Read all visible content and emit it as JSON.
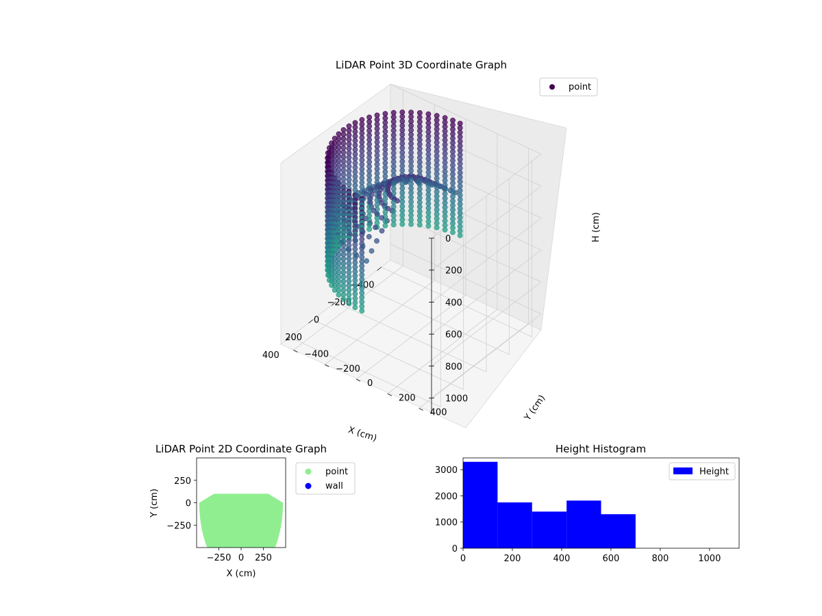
{
  "chart_data": [
    {
      "type": "scatter",
      "projection": "3d",
      "title": "LiDAR Point 3D Coordinate Graph",
      "xlabel": "X (cm)",
      "ylabel": "Y (cm)",
      "zlabel": "H (cm)",
      "xlim": [
        -480,
        480
      ],
      "ylim": [
        -480,
        480
      ],
      "zlim": [
        1100,
        0
      ],
      "x_ticks": [
        -400,
        -200,
        0,
        200,
        400
      ],
      "x_tick_labels": [
        "−400",
        "−200",
        "0",
        "200",
        "400"
      ],
      "y_ticks": [
        -400,
        -200,
        0,
        200,
        400
      ],
      "y_tick_labels": [
        "−400",
        "−200",
        "0",
        "200",
        "400"
      ],
      "z_ticks": [
        0,
        200,
        400,
        600,
        800,
        1000
      ],
      "z_tick_labels": [
        "0",
        "200",
        "400",
        "600",
        "800",
        "1000"
      ],
      "z_inverted": true,
      "grid": true,
      "colormap": "viridis",
      "legend": {
        "placement": "upper-right",
        "entries": [
          "point"
        ]
      },
      "series": [
        {
          "name": "point",
          "description_values": {
            "shape": "half-cylinder wall",
            "radius": 430,
            "angle_range_deg": [
              -180,
              0
            ],
            "height_range": [
              0,
              700
            ]
          }
        }
      ]
    },
    {
      "type": "scatter",
      "title": "LiDAR Point 2D Coordinate Graph",
      "xlabel": "X (cm)",
      "ylabel": "Y (cm)",
      "xlim": [
        -500,
        500
      ],
      "ylim": [
        -500,
        500
      ],
      "x_ticks": [
        -250,
        0,
        250
      ],
      "x_tick_labels": [
        "−250",
        "0",
        "250"
      ],
      "y_ticks": [
        250,
        0,
        -250
      ],
      "y_tick_labels": [
        "250",
        "0",
        "−250"
      ],
      "grid": false,
      "legend": {
        "placement": "outside-right",
        "entries": [
          "point",
          "wall"
        ]
      },
      "series": [
        {
          "name": "point",
          "color": "#90ee90",
          "region": "half-disc",
          "radius": 470,
          "y_max": 100
        },
        {
          "name": "wall",
          "color": "#0000ff",
          "values": []
        }
      ]
    },
    {
      "type": "bar",
      "subtype": "histogram",
      "title": "Height Histogram",
      "xlabel": "",
      "ylabel": "",
      "bin_edges": [
        0,
        140,
        280,
        420,
        560,
        700
      ],
      "values": [
        3300,
        1750,
        1400,
        1820,
        1300
      ],
      "xlim": [
        0,
        1120
      ],
      "ylim": [
        0,
        3450
      ],
      "x_ticks": [
        0,
        200,
        400,
        600,
        800,
        1000
      ],
      "x_tick_labels": [
        "0",
        "200",
        "400",
        "600",
        "800",
        "1000"
      ],
      "y_ticks": [
        0,
        1000,
        2000,
        3000
      ],
      "y_tick_labels": [
        "0",
        "1000",
        "2000",
        "3000"
      ],
      "color": "#0000ff",
      "grid": false,
      "legend": {
        "placement": "upper-right",
        "entries": [
          "Height"
        ]
      }
    }
  ]
}
